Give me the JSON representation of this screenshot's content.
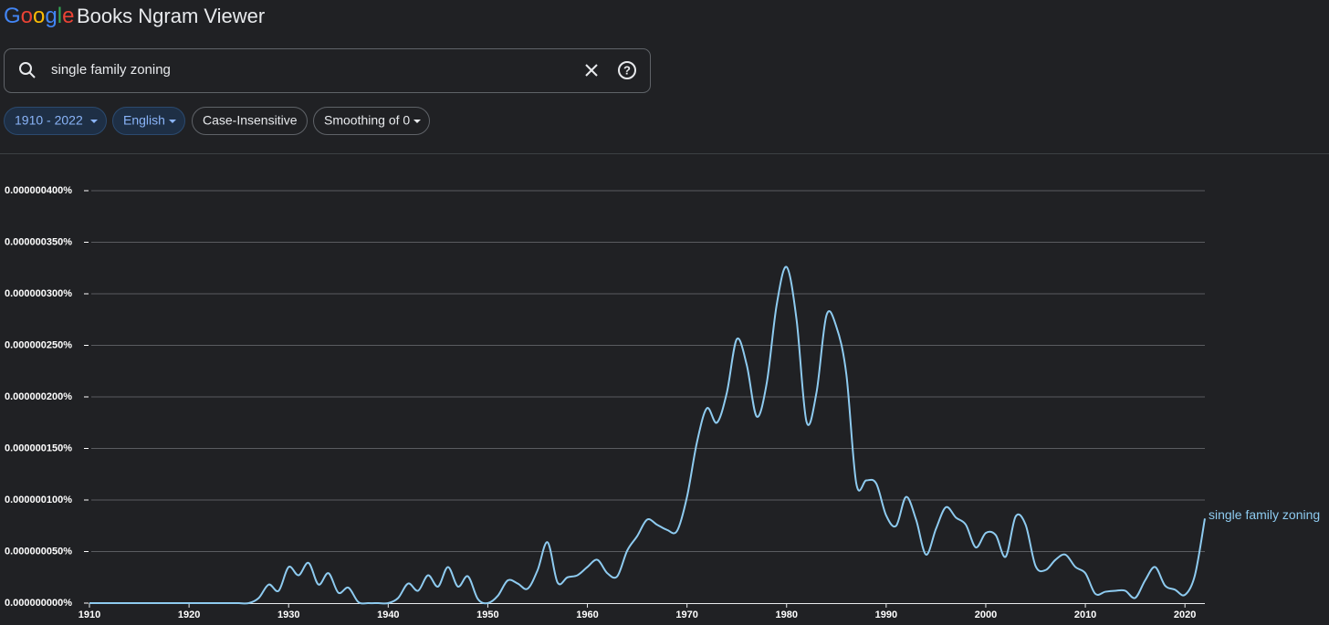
{
  "header": {
    "logo": "Google",
    "title": "Books Ngram Viewer"
  },
  "search": {
    "query": "single family zoning"
  },
  "chips": [
    "1910 - 2022",
    "English",
    "Case-Insensitive",
    "Smoothing of 0"
  ],
  "chart_data": {
    "type": "line",
    "xlim": [
      1910,
      2022
    ],
    "xticks": [
      1910,
      1920,
      1930,
      1940,
      1950,
      1960,
      1970,
      1980,
      1990,
      2000,
      2010,
      2020
    ],
    "ylim": [
      0,
      4e-07
    ],
    "yticks": [
      {
        "value": 0,
        "label": "0.000000000%"
      },
      {
        "value": 5e-08,
        "label": "0.000000050%"
      },
      {
        "value": 1e-07,
        "label": "0.000000100%"
      },
      {
        "value": 1.5e-07,
        "label": "0.000000150%"
      },
      {
        "value": 2e-07,
        "label": "0.000000200%"
      },
      {
        "value": 2.5e-07,
        "label": "0.000000250%"
      },
      {
        "value": 3e-07,
        "label": "0.000000300%"
      },
      {
        "value": 3.5e-07,
        "label": "0.000000350%"
      },
      {
        "value": 4e-07,
        "label": "0.000000400%"
      }
    ],
    "grid": true,
    "x": [
      1910,
      1911,
      1912,
      1913,
      1914,
      1915,
      1916,
      1917,
      1918,
      1919,
      1920,
      1921,
      1922,
      1923,
      1924,
      1925,
      1926,
      1927,
      1928,
      1929,
      1930,
      1931,
      1932,
      1933,
      1934,
      1935,
      1936,
      1937,
      1938,
      1939,
      1940,
      1941,
      1942,
      1943,
      1944,
      1945,
      1946,
      1947,
      1948,
      1949,
      1950,
      1951,
      1952,
      1953,
      1954,
      1955,
      1956,
      1957,
      1958,
      1959,
      1960,
      1961,
      1962,
      1963,
      1964,
      1965,
      1966,
      1967,
      1968,
      1969,
      1970,
      1971,
      1972,
      1973,
      1974,
      1975,
      1976,
      1977,
      1978,
      1979,
      1980,
      1981,
      1982,
      1983,
      1984,
      1985,
      1986,
      1987,
      1988,
      1989,
      1990,
      1991,
      1992,
      1993,
      1994,
      1995,
      1996,
      1997,
      1998,
      1999,
      2000,
      2001,
      2002,
      2003,
      2004,
      2005,
      2006,
      2007,
      2008,
      2009,
      2010,
      2011,
      2012,
      2013,
      2014,
      2015,
      2016,
      2017,
      2018,
      2019,
      2020,
      2021,
      2022
    ],
    "series": [
      {
        "name": "single family zoning",
        "color": "#8ecbf0",
        "values": [
          0,
          0,
          0,
          0,
          0,
          0,
          0,
          0,
          0,
          0,
          0,
          0,
          0,
          0,
          0,
          0,
          0,
          5e-09,
          1.8e-08,
          1.2e-08,
          3.5e-08,
          2.7e-08,
          3.9e-08,
          1.8e-08,
          2.9e-08,
          1e-08,
          1.5e-08,
          1e-09,
          0,
          0,
          0,
          5e-09,
          1.9e-08,
          1.2e-08,
          2.7e-08,
          1.6e-08,
          3.5e-08,
          1.6e-08,
          2.6e-08,
          4e-09,
          0,
          7e-09,
          2.2e-08,
          1.9e-08,
          1.4e-08,
          3.2e-08,
          5.9e-08,
          2e-08,
          2.5e-08,
          2.7e-08,
          3.5e-08,
          4.2e-08,
          2.9e-08,
          2.6e-08,
          5.1e-08,
          6.5e-08,
          8.1e-08,
          7.6e-08,
          7.1e-08,
          7e-08,
          1.03e-07,
          1.56e-07,
          1.89e-07,
          1.75e-07,
          2.04e-07,
          2.56e-07,
          2.31e-07,
          1.81e-07,
          2.13e-07,
          2.89e-07,
          3.26e-07,
          2.75e-07,
          1.76e-07,
          2.04e-07,
          2.79e-07,
          2.68e-07,
          2.22e-07,
          1.16e-07,
          1.19e-07,
          1.16e-07,
          8.5e-08,
          7.5e-08,
          1.03e-07,
          8.1e-08,
          4.7e-08,
          7.2e-08,
          9.3e-08,
          8.3e-08,
          7.6e-08,
          5.4e-08,
          6.8e-08,
          6.6e-08,
          4.5e-08,
          8.4e-08,
          7.6e-08,
          3.6e-08,
          3.2e-08,
          4.2e-08,
          4.7e-08,
          3.5e-08,
          2.9e-08,
          9e-09,
          1.1e-08,
          1.2e-08,
          1.2e-08,
          5e-09,
          2.2e-08,
          3.5e-08,
          1.7e-08,
          1.3e-08,
          8e-09,
          2.7e-08,
          8.2e-08
        ]
      }
    ]
  }
}
